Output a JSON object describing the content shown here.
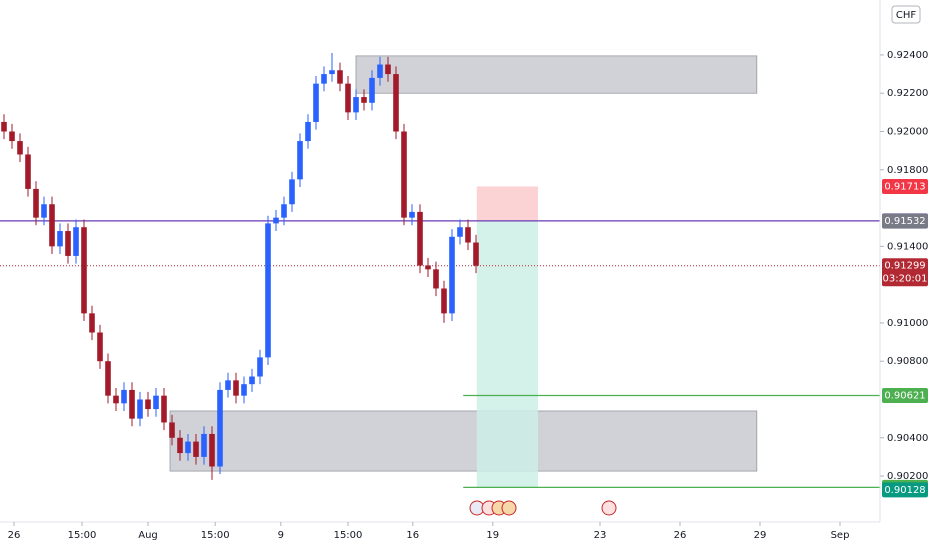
{
  "chart_data": {
    "type": "candlestick",
    "currency": "CHF",
    "xlim": [
      -0.5,
      109.5
    ],
    "ylim": [
      0.8996,
      0.92687
    ],
    "xticks": [
      {
        "value": 1.25,
        "label": "26"
      },
      {
        "value": 9.75,
        "label": "15:00"
      },
      {
        "value": 18,
        "label": "Aug"
      },
      {
        "value": 26.4,
        "label": "15:00"
      },
      {
        "value": 34.6,
        "label": "9"
      },
      {
        "value": 43,
        "label": "15:00"
      },
      {
        "value": 51.1,
        "label": "16"
      },
      {
        "value": 61.1,
        "label": "19"
      },
      {
        "value": 74.5,
        "label": "23"
      },
      {
        "value": 84.5,
        "label": "26"
      },
      {
        "value": 94.5,
        "label": "29"
      },
      {
        "value": 104.5,
        "label": "Sep"
      }
    ],
    "yticks": [
      {
        "value": 0.924,
        "label": "0.92400"
      },
      {
        "value": 0.922,
        "label": "0.92200"
      },
      {
        "value": 0.92,
        "label": "0.92000"
      },
      {
        "value": 0.918,
        "label": "0.91800"
      },
      {
        "value": 0.914,
        "label": "0.91400"
      },
      {
        "value": 0.91,
        "label": "0.91000"
      },
      {
        "value": 0.908,
        "label": "0.90800"
      },
      {
        "value": 0.904,
        "label": "0.90400"
      },
      {
        "value": 0.902,
        "label": "0.90200"
      }
    ],
    "up_color": "#2962ff",
    "down_color": "#a31b2b",
    "open": [
      0.9205,
      0.92,
      0.9195,
      0.9188,
      0.917,
      0.9155,
      0.9162,
      0.914,
      0.9148,
      0.9135,
      0.915,
      0.9105,
      0.9095,
      0.908,
      0.9062,
      0.9058,
      0.9065,
      0.905,
      0.906,
      0.9055,
      0.9062,
      0.9048,
      0.904,
      0.9032,
      0.9038,
      0.903,
      0.9042,
      0.9025,
      0.9065,
      0.907,
      0.9062,
      0.9068,
      0.9072,
      0.9082,
      0.9152,
      0.9155,
      0.9162,
      0.9175,
      0.9195,
      0.9205,
      0.9225,
      0.923,
      0.9232,
      0.9225,
      0.921,
      0.9218,
      0.9215,
      0.9228,
      0.9235,
      0.923,
      0.92,
      0.9155,
      0.9158,
      0.913,
      0.9128,
      0.9118,
      0.9105,
      0.9145,
      0.915,
      0.9142
    ],
    "high": [
      0.9209,
      0.9204,
      0.9199,
      0.9192,
      0.9174,
      0.9166,
      0.9166,
      0.9152,
      0.9152,
      0.9154,
      0.9154,
      0.9109,
      0.9099,
      0.9084,
      0.9066,
      0.9069,
      0.9069,
      0.9064,
      0.9064,
      0.9066,
      0.9066,
      0.9052,
      0.9044,
      0.9042,
      0.9042,
      0.9046,
      0.9046,
      0.9069,
      0.9074,
      0.9074,
      0.9072,
      0.9076,
      0.9086,
      0.9156,
      0.9159,
      0.9166,
      0.9179,
      0.9199,
      0.9209,
      0.9229,
      0.9234,
      0.9241,
      0.9236,
      0.9229,
      0.9222,
      0.9222,
      0.9232,
      0.9239,
      0.9239,
      0.9234,
      0.9204,
      0.9162,
      0.9162,
      0.9134,
      0.9132,
      0.9122,
      0.9149,
      0.9154,
      0.9154,
      0.9146
    ],
    "low": [
      0.9196,
      0.9191,
      0.9184,
      0.9166,
      0.9151,
      0.9151,
      0.9136,
      0.9136,
      0.9131,
      0.9131,
      0.9101,
      0.9091,
      0.9076,
      0.9058,
      0.9054,
      0.9054,
      0.9046,
      0.9046,
      0.9051,
      0.9051,
      0.9044,
      0.9036,
      0.9028,
      0.9028,
      0.9026,
      0.9026,
      0.9018,
      0.9021,
      0.9061,
      0.9058,
      0.9058,
      0.9064,
      0.9068,
      0.9078,
      0.9148,
      0.9151,
      0.9158,
      0.9171,
      0.9191,
      0.9201,
      0.9221,
      0.9226,
      0.9221,
      0.9206,
      0.9206,
      0.9211,
      0.9211,
      0.9224,
      0.9226,
      0.9196,
      0.9151,
      0.9151,
      0.9126,
      0.9124,
      0.9114,
      0.91,
      0.9101,
      0.9141,
      0.9138,
      0.9126
    ],
    "close": [
      0.92,
      0.9195,
      0.9188,
      0.917,
      0.9155,
      0.9162,
      0.914,
      0.9148,
      0.9135,
      0.915,
      0.9105,
      0.9095,
      0.908,
      0.9062,
      0.9058,
      0.9065,
      0.905,
      0.906,
      0.9055,
      0.9062,
      0.9048,
      0.904,
      0.9032,
      0.9038,
      0.903,
      0.9042,
      0.9025,
      0.9065,
      0.907,
      0.9062,
      0.9068,
      0.9072,
      0.9082,
      0.9152,
      0.9155,
      0.9162,
      0.9175,
      0.9195,
      0.9205,
      0.9225,
      0.923,
      0.9232,
      0.9225,
      0.921,
      0.9218,
      0.9215,
      0.9228,
      0.9235,
      0.923,
      0.92,
      0.9155,
      0.9158,
      0.913,
      0.9128,
      0.9118,
      0.9105,
      0.9145,
      0.915,
      0.9142,
      0.91299
    ],
    "zones": [
      {
        "x": [
          44,
          94.1
        ],
        "y": [
          0.922,
          0.92395
        ],
        "color": "#c9cad1"
      },
      {
        "x": [
          20.75,
          94.1
        ],
        "y": [
          0.90226,
          0.9054
        ],
        "color": "#c9cad1"
      }
    ],
    "position": {
      "x": [
        59.1,
        66.75
      ],
      "stop": 0.91713,
      "entry": 0.91533,
      "target": 0.90141,
      "stop_color": "#fbd3d5",
      "target_color": "#cdeee6"
    },
    "price_labels": [
      {
        "value": 0.91713,
        "color": "#f23645"
      },
      {
        "value": 0.91533,
        "color": "#673ab7",
        "line": "solid"
      },
      {
        "value": 0.91532,
        "color": "#787b86"
      },
      {
        "value": 0.91299,
        "color": "#b22833",
        "line": "dotted",
        "sub": "03:20:01"
      },
      {
        "value": 0.90621,
        "color": "#4caf50",
        "line": "solid",
        "x_start": 57.4
      },
      {
        "value": 0.90141,
        "color": "#4caf50",
        "line": "solid",
        "x_start": 57.4
      },
      {
        "value": 0.90128,
        "color": "#089981"
      }
    ]
  }
}
